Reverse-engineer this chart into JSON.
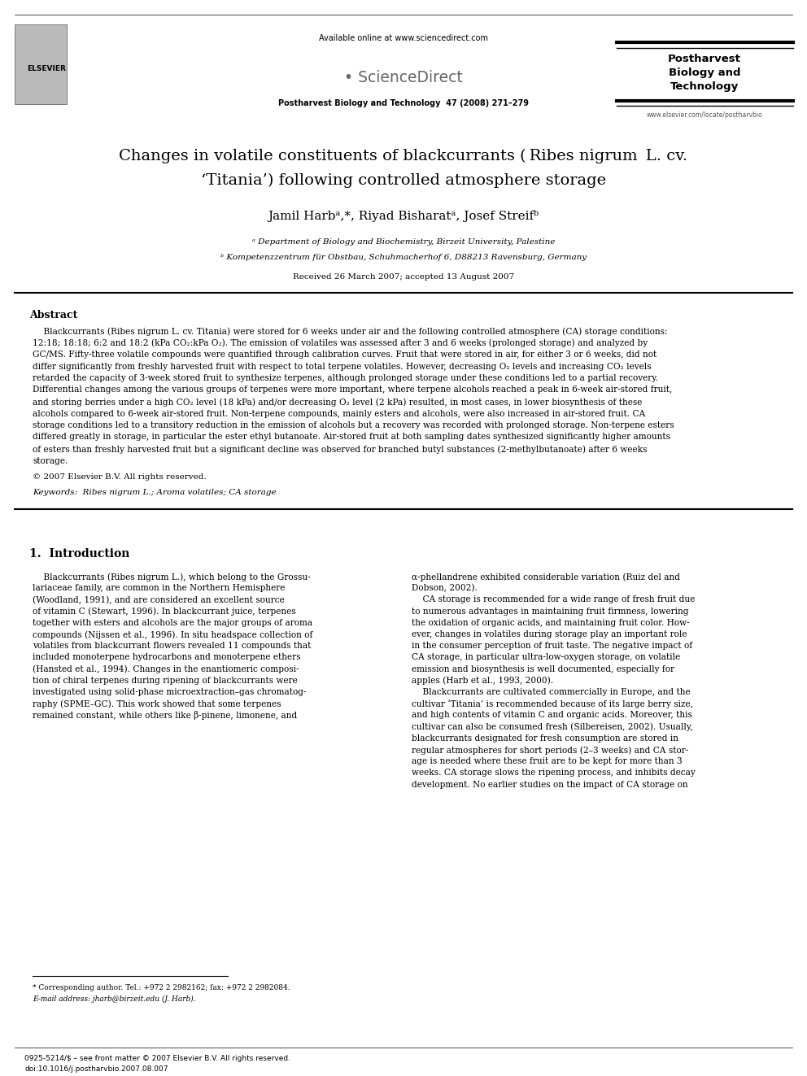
{
  "page_width": 9.92,
  "page_height": 13.23,
  "background_color": "#ffffff",
  "header_available": "Available online at www.sciencedirect.com",
  "header_journal_line": "Postharvest Biology and Technology  47 (2008) 271–279",
  "journal_box_text": "Postharvest\nBiology and\nTechnology",
  "journal_website": "www.elsevier.com/locate/postharvbio",
  "elsevier_label": "ELSEVIER",
  "title_line1": "Changes in volatile constituents of blackcurrants ( Ribes nigrum  L. cv.",
  "title_line2": "‘Titania’) following controlled atmosphere storage",
  "authors_line": "Jamil Harbᵃ,*, Riyad Bisharatᵃ, Josef Streifᵇ",
  "affil_a": "ᵃ Department of Biology and Biochemistry, Birzeit University, Palestine",
  "affil_b": "ᵇ Kompetenzzentrum für Obstbau, Schuhmacherhof 6, D88213 Ravensburg, Germany",
  "received": "Received 26 March 2007; accepted 13 August 2007",
  "abstract_title": "Abstract",
  "abstract_lines": [
    "    Blackcurrants (Ribes nigrum L. cv. Titania) were stored for 6 weeks under air and the following controlled atmosphere (CA) storage conditions:",
    "12:18; 18:18; 6:2 and 18:2 (kPa CO₂:kPa O₂). The emission of volatiles was assessed after 3 and 6 weeks (prolonged storage) and analyzed by",
    "GC/MS. Fifty-three volatile compounds were quantified through calibration curves. Fruit that were stored in air, for either 3 or 6 weeks, did not",
    "differ significantly from freshly harvested fruit with respect to total terpene volatiles. However, decreasing O₂ levels and increasing CO₂ levels",
    "retarded the capacity of 3-week stored fruit to synthesize terpenes, although prolonged storage under these conditions led to a partial recovery.",
    "Differential changes among the various groups of terpenes were more important, where terpene alcohols reached a peak in 6-week air-stored fruit,",
    "and storing berries under a high CO₂ level (18 kPa) and/or decreasing O₂ level (2 kPa) resulted, in most cases, in lower biosynthesis of these",
    "alcohols compared to 6-week air-stored fruit. Non-terpene compounds, mainly esters and alcohols, were also increased in air-stored fruit. CA",
    "storage conditions led to a transitory reduction in the emission of alcohols but a recovery was recorded with prolonged storage. Non-terpene esters",
    "differed greatly in storage, in particular the ester ethyl butanoate. Air-stored fruit at both sampling dates synthesized significantly higher amounts",
    "of esters than freshly harvested fruit but a significant decline was observed for branched butyl substances (2-methylbutanoate) after 6 weeks",
    "storage."
  ],
  "copyright": "© 2007 Elsevier B.V. All rights reserved.",
  "keywords_italic": "Keywords:  Ribes nigrum L.; Aroma volatiles; CA storage",
  "intro_heading": "1.  Introduction",
  "intro_col1_lines": [
    "    Blackcurrants (Ribes nigrum L.), which belong to the Grossu-",
    "lariaceae family, are common in the Northern Hemisphere",
    "(Woodland, 1991), and are considered an excellent source",
    "of vitamin C (Stewart, 1996). In blackcurrant juice, terpenes",
    "together with esters and alcohols are the major groups of aroma",
    "compounds (Nijssen et al., 1996). In situ headspace collection of",
    "volatiles from blackcurrant flowers revealed 11 compounds that",
    "included monoterpene hydrocarbons and monoterpene ethers",
    "(Hansted et al., 1994). Changes in the enantiomeric composi-",
    "tion of chiral terpenes during ripening of blackcurrants were",
    "investigated using solid-phase microextraction–gas chromatog-",
    "raphy (SPME–GC). This work showed that some terpenes",
    "remained constant, while others like β-pinene, limonene, and"
  ],
  "intro_col2_lines": [
    "α-phellandrene exhibited considerable variation (Ruiz del and",
    "Dobson, 2002).",
    "    CA storage is recommended for a wide range of fresh fruit due",
    "to numerous advantages in maintaining fruit firmness, lowering",
    "the oxidation of organic acids, and maintaining fruit color. How-",
    "ever, changes in volatiles during storage play an important role",
    "in the consumer perception of fruit taste. The negative impact of",
    "CA storage, in particular ultra-low-oxygen storage, on volatile",
    "emission and biosynthesis is well documented, especially for",
    "apples (Harb et al., 1993, 2000).",
    "    Blackcurrants are cultivated commercially in Europe, and the",
    "cultivar ‘Titania’ is recommended because of its large berry size,",
    "and high contents of vitamin C and organic acids. Moreover, this",
    "cultivar can also be consumed fresh (Silbereisen, 2002). Usually,",
    "blackcurrants designated for fresh consumption are stored in",
    "regular atmospheres for short periods (2–3 weeks) and CA stor-",
    "age is needed where these fruit are to be kept for more than 3",
    "weeks. CA storage slows the ripening process, and inhibits decay",
    "development. No earlier studies on the impact of CA storage on"
  ],
  "footnote1": "* Corresponding author. Tel.: +972 2 2982162; fax: +972 2 2982084.",
  "footnote2": "E-mail address: jharb@birzeit.edu (J. Harb).",
  "footer_issn": "0925-5214/$ – see front matter © 2007 Elsevier B.V. All rights reserved.",
  "footer_doi": "doi:10.1016/j.postharvbio.2007.08.007"
}
